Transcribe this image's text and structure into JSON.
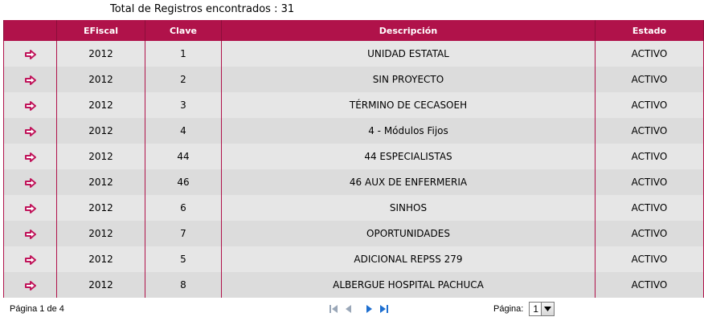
{
  "header": {
    "total_text": "Total de Registros encontrados : 31"
  },
  "table": {
    "columns": [
      "",
      "EFiscal",
      "Clave",
      "Descripción",
      "Estado"
    ],
    "rows": [
      {
        "efiscal": "2012",
        "clave": "1",
        "descripcion": "UNIDAD ESTATAL",
        "estado": "ACTIVO"
      },
      {
        "efiscal": "2012",
        "clave": "2",
        "descripcion": "SIN PROYECTO",
        "estado": "ACTIVO"
      },
      {
        "efiscal": "2012",
        "clave": "3",
        "descripcion": "TÉRMINO DE CECASOEH",
        "estado": "ACTIVO"
      },
      {
        "efiscal": "2012",
        "clave": "4",
        "descripcion": "4 - Módulos Fijos",
        "estado": "ACTIVO"
      },
      {
        "efiscal": "2012",
        "clave": "44",
        "descripcion": "44 ESPECIALISTAS",
        "estado": "ACTIVO"
      },
      {
        "efiscal": "2012",
        "clave": "46",
        "descripcion": "46 AUX DE ENFERMERIA",
        "estado": "ACTIVO"
      },
      {
        "efiscal": "2012",
        "clave": "6",
        "descripcion": "SINHOS",
        "estado": "ACTIVO"
      },
      {
        "efiscal": "2012",
        "clave": "7",
        "descripcion": "OPORTUNIDADES",
        "estado": "ACTIVO"
      },
      {
        "efiscal": "2012",
        "clave": "5",
        "descripcion": "ADICIONAL REPSS 279",
        "estado": "ACTIVO"
      },
      {
        "efiscal": "2012",
        "clave": "8",
        "descripcion": "ALBERGUE HOSPITAL PACHUCA",
        "estado": "ACTIVO"
      }
    ]
  },
  "pager": {
    "page_info": "Página 1 de 4",
    "page_label": "Página:",
    "page_value": "1"
  },
  "colors": {
    "header_bg": "#b0124a",
    "arrow": "#c0145a",
    "nav_blue": "#1e6fd0"
  },
  "icons": {
    "row_select": "arrow-right-icon",
    "first": "first-page-icon",
    "prev": "prev-page-icon",
    "next": "next-page-icon",
    "last": "last-page-icon"
  }
}
